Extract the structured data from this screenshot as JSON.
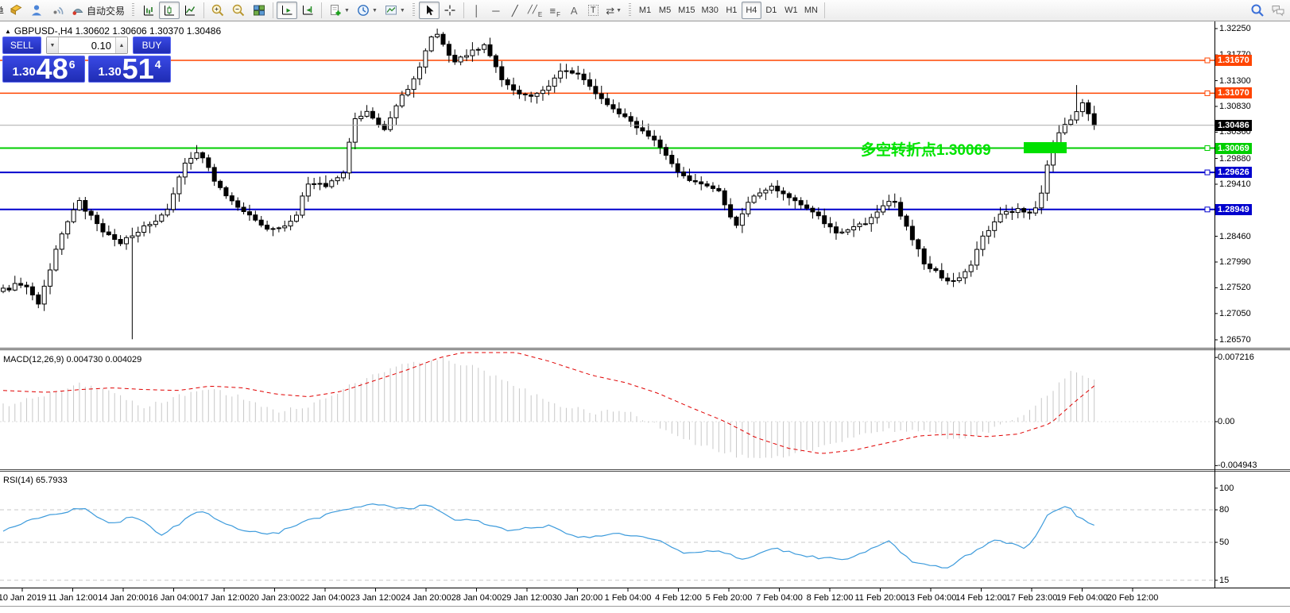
{
  "toolbar": {
    "clipped_label": "单",
    "autotrade_label": "自动交易",
    "timeframes": [
      "M1",
      "M5",
      "M15",
      "M30",
      "H1",
      "H4",
      "D1",
      "W1",
      "MN"
    ],
    "active_timeframe": "H4",
    "tools": {
      "vline": "│",
      "hline": "─",
      "trendline": "╱",
      "channel": "╱╱",
      "channel_sub": "E",
      "fibo": "≡",
      "fibo_sub": "F",
      "text": "A",
      "label": "T",
      "shapes": "⇄"
    }
  },
  "ticker": {
    "text": "GBPUSD-,H4  1.30602 1.30606 1.30370 1.30486"
  },
  "trade_panel": {
    "sell_label": "SELL",
    "buy_label": "BUY",
    "volume": "0.10",
    "sell_price_prefix": "1.30",
    "sell_price_big": "48",
    "sell_price_sup": "6",
    "buy_price_prefix": "1.30",
    "buy_price_big": "51",
    "buy_price_sup": "4"
  },
  "chart_data": [
    {
      "type": "candlestick",
      "symbol": "GBPUSD-",
      "timeframe": "H4",
      "ohlc_current": {
        "open": "1.30602",
        "high": "1.30606",
        "low": "1.30370",
        "close": "1.30486"
      },
      "y_axis": {
        "ticks": [
          "1.32250",
          "1.31770",
          "1.31300",
          "1.30830",
          "1.30360",
          "1.29880",
          "1.29410",
          "1.28460",
          "1.27990",
          "1.27520",
          "1.27050",
          "1.26570"
        ]
      },
      "x_axis": {
        "labels": [
          "10 Jan 2019",
          "11 Jan 12:00",
          "14 Jan 20:00",
          "16 Jan 04:00",
          "17 Jan 12:00",
          "20 Jan 23:00",
          "22 Jan 04:00",
          "23 Jan 12:00",
          "24 Jan 20:00",
          "28 Jan 04:00",
          "29 Jan 12:00",
          "30 Jan 20:00",
          "1 Feb 04:00",
          "4 Feb 12:00",
          "5 Feb 20:00",
          "7 Feb 04:00",
          "8 Feb 12:00",
          "11 Feb 20:00",
          "13 Feb 04:00",
          "14 Feb 12:00",
          "17 Feb 23:00",
          "19 Feb 04:00",
          "20 Feb 12:00"
        ]
      },
      "levels": [
        {
          "price": 1.3167,
          "label": "1.31670",
          "color": "#FF4500",
          "width": 1.5
        },
        {
          "price": 1.3107,
          "label": "1.31070",
          "color": "#FF4500",
          "width": 1.5
        },
        {
          "price": 1.30069,
          "label": "1.30069",
          "color": "#00CE00",
          "width": 2
        },
        {
          "price": 1.29626,
          "label": "1.29626",
          "color": "#0000CD",
          "width": 2
        },
        {
          "price": 1.28949,
          "label": "1.28949",
          "color": "#0000CD",
          "width": 2
        }
      ],
      "current_price": {
        "value": 1.30486,
        "label": "1.30486",
        "line_color": "#A9A9A9",
        "label_bg": "#000000"
      },
      "annotation": {
        "text": "多空转折点1.30069",
        "color": "#00E400"
      },
      "highlight_box": {
        "color": "#00E000"
      },
      "candle_count": 187,
      "close_waypoints": [
        [
          0.0,
          1.2748
        ],
        [
          0.018,
          1.2762
        ],
        [
          0.032,
          1.2722
        ],
        [
          0.05,
          1.283
        ],
        [
          0.068,
          1.2915
        ],
        [
          0.085,
          1.287
        ],
        [
          0.105,
          1.2832
        ],
        [
          0.118,
          1.2845
        ],
        [
          0.13,
          1.2862
        ],
        [
          0.15,
          1.289
        ],
        [
          0.165,
          1.2975
        ],
        [
          0.18,
          1.3
        ],
        [
          0.195,
          1.294
        ],
        [
          0.215,
          1.2897
        ],
        [
          0.235,
          1.2868
        ],
        [
          0.25,
          1.2855
        ],
        [
          0.268,
          1.288
        ],
        [
          0.28,
          1.2948
        ],
        [
          0.298,
          1.2938
        ],
        [
          0.312,
          1.2965
        ],
        [
          0.322,
          1.306
        ],
        [
          0.335,
          1.3072
        ],
        [
          0.348,
          1.3038
        ],
        [
          0.362,
          1.309
        ],
        [
          0.378,
          1.314
        ],
        [
          0.392,
          1.3205
        ],
        [
          0.398,
          1.3218
        ],
        [
          0.412,
          1.3165
        ],
        [
          0.428,
          1.3182
        ],
        [
          0.44,
          1.3196
        ],
        [
          0.456,
          1.3135
        ],
        [
          0.476,
          1.3098
        ],
        [
          0.496,
          1.3115
        ],
        [
          0.514,
          1.3152
        ],
        [
          0.528,
          1.3138
        ],
        [
          0.548,
          1.3095
        ],
        [
          0.568,
          1.3062
        ],
        [
          0.588,
          1.304
        ],
        [
          0.602,
          1.3005
        ],
        [
          0.618,
          1.2962
        ],
        [
          0.638,
          1.294
        ],
        [
          0.656,
          1.2928
        ],
        [
          0.672,
          1.2862
        ],
        [
          0.686,
          1.2922
        ],
        [
          0.706,
          1.2935
        ],
        [
          0.726,
          1.2912
        ],
        [
          0.746,
          1.2888
        ],
        [
          0.762,
          1.2852
        ],
        [
          0.778,
          1.2862
        ],
        [
          0.792,
          1.2868
        ],
        [
          0.806,
          1.2898
        ],
        [
          0.816,
          1.2918
        ],
        [
          0.83,
          1.2852
        ],
        [
          0.844,
          1.28
        ],
        [
          0.858,
          1.2775
        ],
        [
          0.872,
          1.2762
        ],
        [
          0.886,
          1.2788
        ],
        [
          0.898,
          1.2845
        ],
        [
          0.912,
          1.288
        ],
        [
          0.926,
          1.2895
        ],
        [
          0.94,
          1.289
        ],
        [
          0.95,
          1.2908
        ],
        [
          0.96,
          1.3008
        ],
        [
          0.97,
          1.3042
        ],
        [
          0.98,
          1.3058
        ],
        [
          0.99,
          1.3092
        ],
        [
          1.0,
          1.30486
        ]
      ],
      "special_wicks": [
        {
          "i": 22,
          "low": 1.2658
        },
        {
          "i": 74,
          "high": 1.3225
        },
        {
          "i": 183,
          "high": 1.3122
        }
      ]
    },
    {
      "type": "macd_histogram",
      "label": "MACD(12,26,9) 0.004730 0.004029",
      "hist_color": "#C8C8C8",
      "signal_color": "#E00000",
      "last_main": 0.00473,
      "last_signal": 0.004029,
      "values_axis": [
        {
          "v": 0.007216,
          "label": "0.007216"
        },
        {
          "v": 0,
          "label": "0.00"
        },
        {
          "v": -0.004943,
          "label": "-0.004943"
        }
      ],
      "waypoints": [
        [
          0.0,
          0.0018,
          0.0035
        ],
        [
          0.04,
          0.003,
          0.0033
        ],
        [
          0.07,
          0.0042,
          0.0036
        ],
        [
          0.1,
          0.0034,
          0.0038
        ],
        [
          0.13,
          0.0016,
          0.0036
        ],
        [
          0.16,
          0.0028,
          0.0035
        ],
        [
          0.19,
          0.0036,
          0.004
        ],
        [
          0.22,
          0.0027,
          0.0038
        ],
        [
          0.25,
          0.0012,
          0.0031
        ],
        [
          0.28,
          0.0016,
          0.0028
        ],
        [
          0.31,
          0.0036,
          0.0034
        ],
        [
          0.34,
          0.0052,
          0.0046
        ],
        [
          0.37,
          0.0066,
          0.0058
        ],
        [
          0.4,
          0.0072,
          0.0072
        ],
        [
          0.43,
          0.0062,
          0.008
        ],
        [
          0.46,
          0.0046,
          0.0081
        ],
        [
          0.5,
          0.0022,
          0.0068
        ],
        [
          0.54,
          0.001,
          0.0052
        ],
        [
          0.57,
          0.0012,
          0.0044
        ],
        [
          0.6,
          -0.0004,
          0.0032
        ],
        [
          0.63,
          -0.0022,
          0.0016
        ],
        [
          0.66,
          -0.0035,
          0.0001
        ],
        [
          0.69,
          -0.0043,
          -0.0018
        ],
        [
          0.72,
          -0.004,
          -0.003
        ],
        [
          0.75,
          -0.0028,
          -0.0036
        ],
        [
          0.78,
          -0.0016,
          -0.0032
        ],
        [
          0.81,
          -0.0009,
          -0.0024
        ],
        [
          0.84,
          -0.0011,
          -0.0016
        ],
        [
          0.87,
          -0.0019,
          -0.0014
        ],
        [
          0.9,
          -0.0013,
          -0.0017
        ],
        [
          0.93,
          0.0004,
          -0.0014
        ],
        [
          0.96,
          0.0034,
          -0.0002
        ],
        [
          0.98,
          0.0058,
          0.002
        ],
        [
          1.0,
          0.00473,
          0.004029
        ]
      ]
    },
    {
      "type": "line",
      "label": "RSI(14) 65.7933",
      "line_color": "#3D9BDC",
      "last_value": 65.7933,
      "levels_axis": [
        {
          "v": 100,
          "label": "100",
          "dashed": false
        },
        {
          "v": 80,
          "label": "80",
          "dashed": true
        },
        {
          "v": 50,
          "label": "50",
          "dashed": true
        },
        {
          "v": 15,
          "label": "15",
          "dashed": true
        }
      ],
      "waypoints": [
        [
          0,
          60
        ],
        [
          0.03,
          72
        ],
        [
          0.073,
          82
        ],
        [
          0.1,
          66
        ],
        [
          0.12,
          75
        ],
        [
          0.145,
          56
        ],
        [
          0.18,
          80
        ],
        [
          0.22,
          60
        ],
        [
          0.25,
          58
        ],
        [
          0.275,
          69
        ],
        [
          0.31,
          79
        ],
        [
          0.34,
          86
        ],
        [
          0.37,
          80
        ],
        [
          0.39,
          86
        ],
        [
          0.41,
          72
        ],
        [
          0.435,
          69
        ],
        [
          0.465,
          61
        ],
        [
          0.5,
          65
        ],
        [
          0.53,
          54
        ],
        [
          0.565,
          58
        ],
        [
          0.6,
          52
        ],
        [
          0.625,
          39
        ],
        [
          0.655,
          43
        ],
        [
          0.68,
          34
        ],
        [
          0.705,
          45
        ],
        [
          0.735,
          37
        ],
        [
          0.77,
          34
        ],
        [
          0.79,
          40
        ],
        [
          0.81,
          52
        ],
        [
          0.835,
          31
        ],
        [
          0.865,
          26
        ],
        [
          0.885,
          39
        ],
        [
          0.91,
          53
        ],
        [
          0.935,
          45
        ],
        [
          0.942,
          48
        ],
        [
          0.955,
          72
        ],
        [
          0.963,
          80
        ],
        [
          0.975,
          84
        ],
        [
          0.985,
          74
        ],
        [
          1,
          65.79
        ]
      ]
    }
  ]
}
